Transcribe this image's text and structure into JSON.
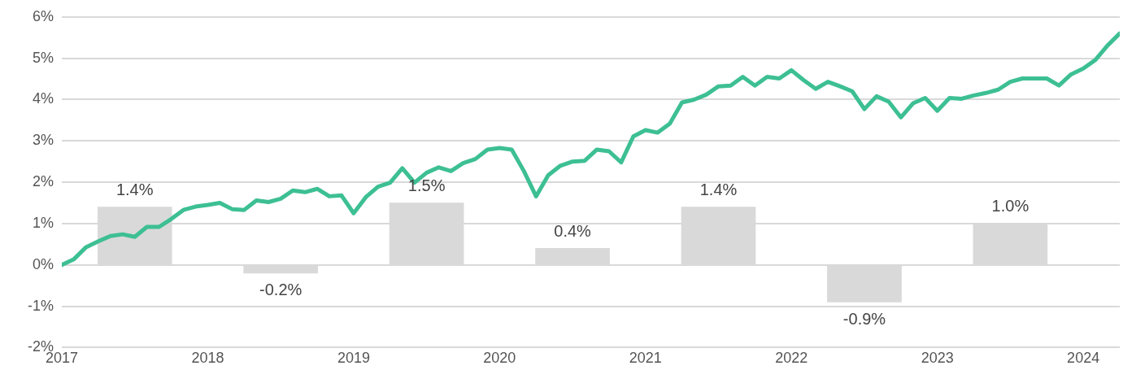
{
  "chart_data": {
    "type": "bar",
    "grid": "y",
    "xlim": [
      "2017-01",
      "2024-04"
    ],
    "xticks": [
      "2017",
      "2018",
      "2019",
      "2020",
      "2021",
      "2022",
      "2023",
      "2024"
    ],
    "ylim": [
      -2,
      6
    ],
    "yticks": [
      {
        "value": -2,
        "label": "-2%"
      },
      {
        "value": -1,
        "label": "-1%"
      },
      {
        "value": 0,
        "label": "0%"
      },
      {
        "value": 1,
        "label": "1%"
      },
      {
        "value": 2,
        "label": "2%"
      },
      {
        "value": 3,
        "label": "3%"
      },
      {
        "value": 4,
        "label": "4%"
      },
      {
        "value": 5,
        "label": "5%"
      },
      {
        "value": 6,
        "label": "6%"
      }
    ],
    "series": [
      {
        "color": "#d9d9d9",
        "x": [
          "2017-07",
          "2018-07",
          "2019-07",
          "2020-07",
          "2021-07",
          "2022-07",
          "2023-07"
        ],
        "values": [
          1.4,
          -0.2,
          1.5,
          0.4,
          1.4,
          -0.9,
          1.0
        ],
        "value_labels": [
          "1.4%",
          "-0.2%",
          "1.5%",
          "0.4%",
          "1.4%",
          "-0.9%",
          "1.0%"
        ]
      },
      {
        "type": "line",
        "color": "#3dbf94",
        "marker": "none",
        "line_style": "solid",
        "x": [
          "2017-01",
          "2017-02",
          "2017-03",
          "2017-04",
          "2017-05",
          "2017-06",
          "2017-07",
          "2017-08",
          "2017-09",
          "2017-10",
          "2017-11",
          "2017-12",
          "2018-01",
          "2018-02",
          "2018-03",
          "2018-04",
          "2018-05",
          "2018-06",
          "2018-07",
          "2018-08",
          "2018-09",
          "2018-10",
          "2018-11",
          "2018-12",
          "2019-01",
          "2019-02",
          "2019-03",
          "2019-04",
          "2019-05",
          "2019-06",
          "2019-07",
          "2019-08",
          "2019-09",
          "2019-10",
          "2019-11",
          "2019-12",
          "2020-01",
          "2020-02",
          "2020-03",
          "2020-04",
          "2020-05",
          "2020-06",
          "2020-07",
          "2020-08",
          "2020-09",
          "2020-10",
          "2020-11",
          "2020-12",
          "2021-01",
          "2021-02",
          "2021-03",
          "2021-04",
          "2021-05",
          "2021-06",
          "2021-07",
          "2021-08",
          "2021-09",
          "2021-10",
          "2021-11",
          "2021-12",
          "2022-01",
          "2022-02",
          "2022-03",
          "2022-04",
          "2022-05",
          "2022-06",
          "2022-07",
          "2022-08",
          "2022-09",
          "2022-10",
          "2022-11",
          "2022-12",
          "2023-01",
          "2023-02",
          "2023-03",
          "2023-04",
          "2023-05",
          "2023-06",
          "2023-07",
          "2023-08",
          "2023-09",
          "2023-10",
          "2023-11",
          "2023-12",
          "2024-01",
          "2024-02",
          "2024-03",
          "2024-04"
        ],
        "values": [
          0,
          0.14,
          0.43,
          0.57,
          0.7,
          0.74,
          0.68,
          0.92,
          0.92,
          1.11,
          1.33,
          1.41,
          1.45,
          1.5,
          1.35,
          1.33,
          1.56,
          1.52,
          1.6,
          1.8,
          1.76,
          1.84,
          1.66,
          1.68,
          1.25,
          1.64,
          1.89,
          1.99,
          2.34,
          1.99,
          2.23,
          2.36,
          2.27,
          2.46,
          2.56,
          2.79,
          2.83,
          2.79,
          2.27,
          1.66,
          2.17,
          2.4,
          2.5,
          2.52,
          2.79,
          2.75,
          2.48,
          3.11,
          3.26,
          3.2,
          3.42,
          3.93,
          4.0,
          4.12,
          4.32,
          4.34,
          4.55,
          4.34,
          4.55,
          4.51,
          4.71,
          4.47,
          4.26,
          4.43,
          4.32,
          4.2,
          3.77,
          4.08,
          3.95,
          3.57,
          3.91,
          4.04,
          3.73,
          4.04,
          4.02,
          4.1,
          4.16,
          4.24,
          4.43,
          4.51,
          4.51,
          4.51,
          4.34,
          4.61,
          4.75,
          4.96,
          5.31,
          5.6
        ]
      }
    ]
  }
}
